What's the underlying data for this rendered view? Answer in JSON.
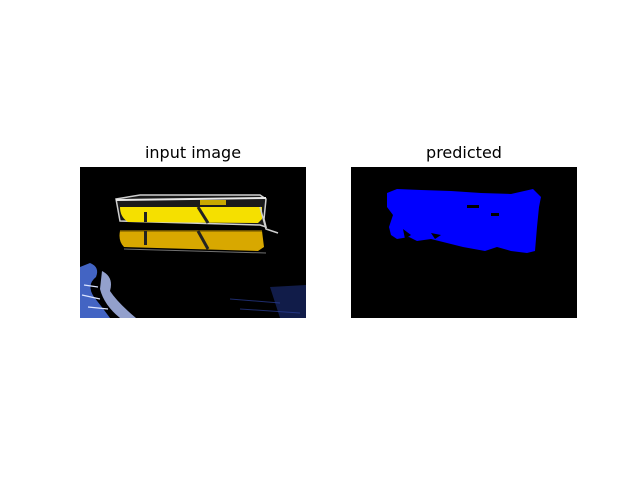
{
  "figure": {
    "panels": [
      {
        "title": "input image",
        "content": "photo of a yellow rowboat on dark water with reflection"
      },
      {
        "title": "predicted",
        "content": "segmentation mask of the boat region"
      }
    ]
  },
  "colors": {
    "background": "#ffffff",
    "panel_bg": "#000000",
    "boat_yellow": "#f5e000",
    "reflection_orange": "#d8a800",
    "water_blue": "#4a6fd8",
    "mask_blue": "#0000ff"
  }
}
